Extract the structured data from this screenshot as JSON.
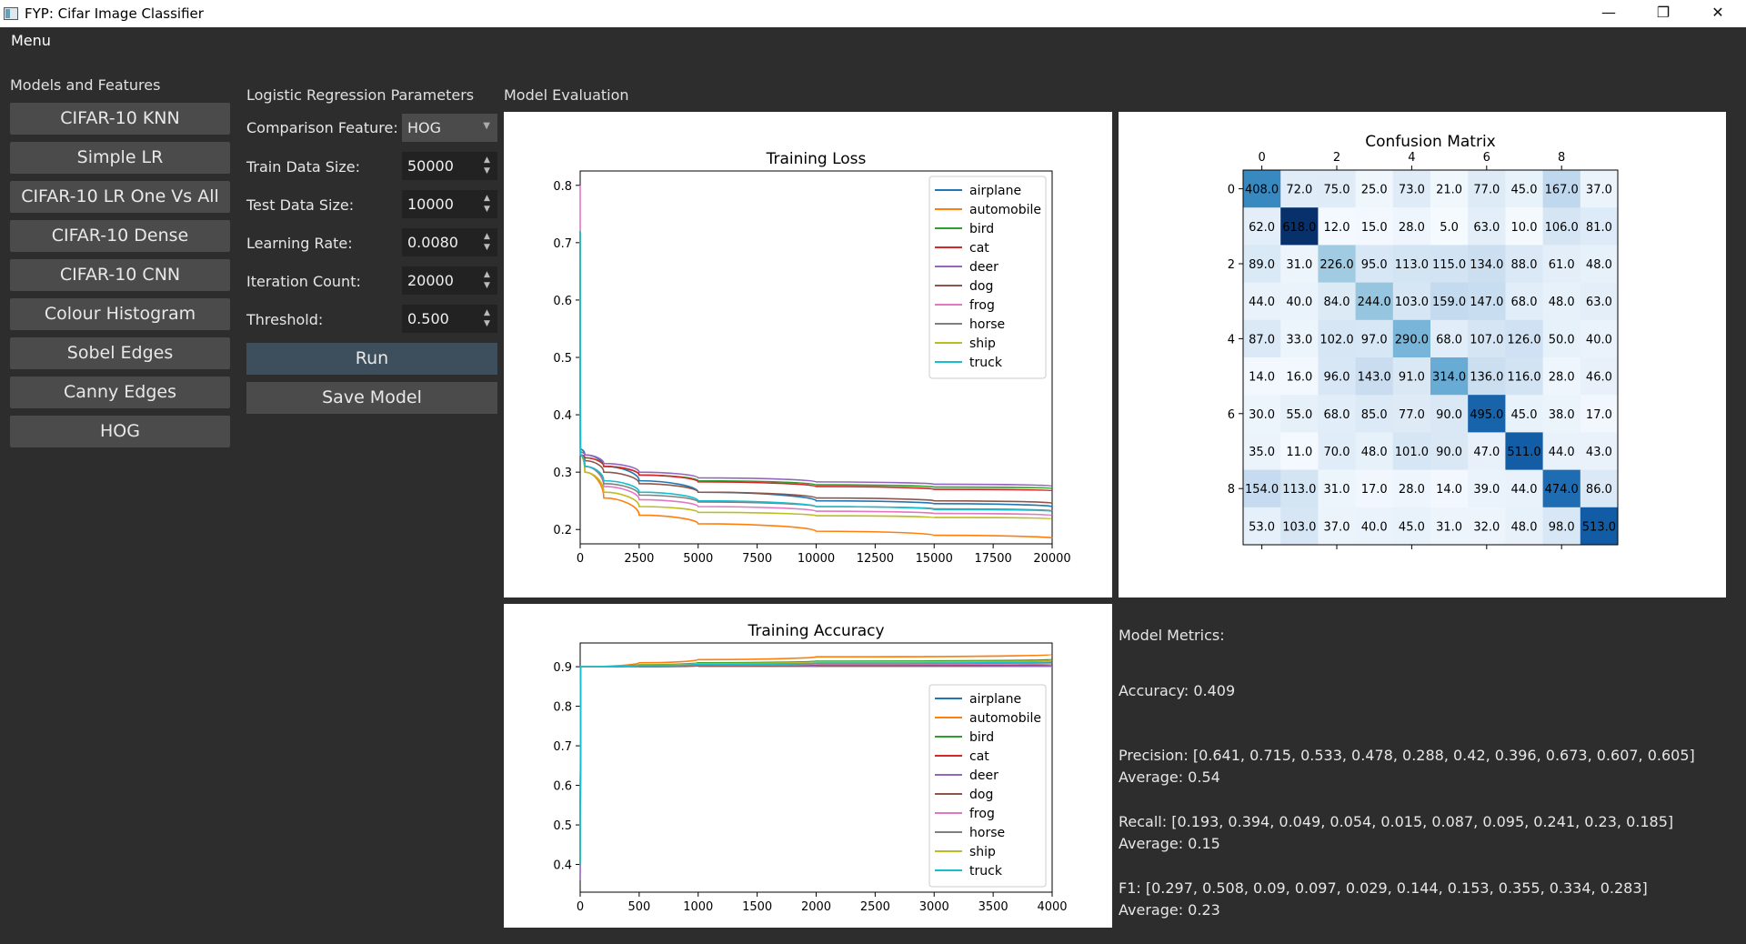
{
  "window": {
    "title": "FYP: Cifar Image Classifier",
    "minimize": "—",
    "restore": "❐",
    "close": "✕"
  },
  "menubar": {
    "menu": "Menu"
  },
  "sidebar": {
    "heading": "Models and Features",
    "items": [
      {
        "label": "CIFAR-10 KNN"
      },
      {
        "label": "Simple LR"
      },
      {
        "label": "CIFAR-10 LR One Vs All"
      },
      {
        "label": "CIFAR-10 Dense"
      },
      {
        "label": "CIFAR-10 CNN"
      },
      {
        "label": "Colour Histogram"
      },
      {
        "label": "Sobel Edges"
      },
      {
        "label": "Canny Edges"
      },
      {
        "label": "HOG"
      }
    ]
  },
  "params": {
    "heading": "Logistic Regression Parameters",
    "comparison_feature": {
      "label": "Comparison Feature:",
      "value": "HOG"
    },
    "train_size": {
      "label": "Train Data Size:",
      "value": "50000"
    },
    "test_size": {
      "label": "Test Data Size:",
      "value": "10000"
    },
    "learning_rate": {
      "label": "Learning Rate:",
      "value": "0.0080"
    },
    "iterations": {
      "label": "Iteration Count:",
      "value": "20000"
    },
    "threshold": {
      "label": "Threshold:",
      "value": "0.500"
    },
    "run_label": "Run",
    "save_label": "Save Model",
    "run_color": "#3d4f5c",
    "save_color": "#4b4b4b"
  },
  "evaluation": {
    "heading": "Model Evaluation",
    "metrics": {
      "heading": "Model Metrics:",
      "accuracy": "Accuracy: 0.409",
      "precision": "Precision: [0.641, 0.715, 0.533, 0.478, 0.288, 0.42, 0.396, 0.673, 0.607, 0.605]",
      "precision_avg": "Average: 0.54",
      "recall": "Recall: [0.193, 0.394, 0.049, 0.054, 0.015, 0.087, 0.095, 0.241, 0.23, 0.185]",
      "recall_avg": "Average: 0.15",
      "f1": "F1: [0.297, 0.508, 0.09, 0.097, 0.029, 0.144, 0.153, 0.355, 0.334, 0.283]",
      "f1_avg": "Average: 0.23"
    }
  },
  "chart_data": [
    {
      "type": "line",
      "title": "Training Loss",
      "xlim": [
        0,
        20000
      ],
      "ylim": [
        0.175,
        0.825
      ],
      "xticks": [
        0,
        2500,
        5000,
        7500,
        10000,
        12500,
        15000,
        17500,
        20000
      ],
      "yticks": [
        0.2,
        0.3,
        0.4,
        0.5,
        0.6,
        0.7,
        0.8
      ],
      "legend": "top-right",
      "series": [
        {
          "name": "airplane",
          "color": "#1f77b4",
          "x": [
            0,
            10,
            200,
            1000,
            2500,
            5000,
            10000,
            15000,
            20000
          ],
          "y": [
            0.72,
            0.34,
            0.33,
            0.31,
            0.285,
            0.265,
            0.25,
            0.245,
            0.24
          ]
        },
        {
          "name": "automobile",
          "color": "#ff7f0e",
          "x": [
            0,
            10,
            200,
            1000,
            2500,
            5000,
            10000,
            15000,
            20000
          ],
          "y": [
            0.72,
            0.33,
            0.3,
            0.255,
            0.225,
            0.21,
            0.197,
            0.19,
            0.185
          ]
        },
        {
          "name": "bird",
          "color": "#2ca02c",
          "x": [
            0,
            10,
            200,
            1000,
            2500,
            5000,
            10000,
            15000,
            20000
          ],
          "y": [
            0.72,
            0.33,
            0.325,
            0.31,
            0.295,
            0.285,
            0.278,
            0.274,
            0.272
          ]
        },
        {
          "name": "cat",
          "color": "#d62728",
          "x": [
            0,
            10,
            200,
            1000,
            2500,
            5000,
            10000,
            15000,
            20000
          ],
          "y": [
            0.72,
            0.33,
            0.325,
            0.31,
            0.295,
            0.283,
            0.275,
            0.27,
            0.268
          ]
        },
        {
          "name": "deer",
          "color": "#9467bd",
          "x": [
            0,
            10,
            200,
            1000,
            2500,
            5000,
            10000,
            15000,
            20000
          ],
          "y": [
            0.72,
            0.335,
            0.33,
            0.315,
            0.3,
            0.29,
            0.283,
            0.279,
            0.276
          ]
        },
        {
          "name": "dog",
          "color": "#8c564b",
          "x": [
            0,
            10,
            200,
            1000,
            2500,
            5000,
            10000,
            15000,
            20000
          ],
          "y": [
            0.72,
            0.33,
            0.32,
            0.3,
            0.28,
            0.265,
            0.255,
            0.25,
            0.246
          ]
        },
        {
          "name": "frog",
          "color": "#e377c2",
          "x": [
            0,
            10,
            200,
            1000,
            2500,
            5000,
            10000,
            15000,
            20000
          ],
          "y": [
            0.8,
            0.33,
            0.31,
            0.275,
            0.252,
            0.24,
            0.232,
            0.228,
            0.225
          ]
        },
        {
          "name": "horse",
          "color": "#7f7f7f",
          "x": [
            0,
            10,
            200,
            1000,
            2500,
            5000,
            10000,
            15000,
            20000
          ],
          "y": [
            0.72,
            0.33,
            0.31,
            0.28,
            0.26,
            0.248,
            0.24,
            0.236,
            0.233
          ]
        },
        {
          "name": "ship",
          "color": "#bcbd22",
          "x": [
            0,
            10,
            200,
            1000,
            2500,
            5000,
            10000,
            15000,
            20000
          ],
          "y": [
            0.72,
            0.33,
            0.3,
            0.265,
            0.24,
            0.23,
            0.224,
            0.221,
            0.219
          ]
        },
        {
          "name": "truck",
          "color": "#17becf",
          "x": [
            0,
            10,
            200,
            1000,
            2500,
            5000,
            10000,
            15000,
            20000
          ],
          "y": [
            0.72,
            0.33,
            0.31,
            0.285,
            0.265,
            0.25,
            0.24,
            0.235,
            0.232
          ]
        }
      ]
    },
    {
      "type": "line",
      "title": "Training Accuracy",
      "xlim": [
        0,
        4000
      ],
      "ylim": [
        0.33,
        0.96
      ],
      "xticks": [
        0,
        500,
        1000,
        1500,
        2000,
        2500,
        3000,
        3500,
        4000
      ],
      "yticks": [
        0.4,
        0.5,
        0.6,
        0.7,
        0.8,
        0.9
      ],
      "legend": "lower-right",
      "series": [
        {
          "name": "airplane",
          "color": "#1f77b4",
          "x": [
            0,
            5,
            500,
            1000,
            2000,
            4000
          ],
          "y": [
            0.4,
            0.9,
            0.902,
            0.905,
            0.908,
            0.91
          ]
        },
        {
          "name": "automobile",
          "color": "#ff7f0e",
          "x": [
            0,
            5,
            500,
            1000,
            2000,
            4000
          ],
          "y": [
            0.4,
            0.9,
            0.91,
            0.918,
            0.925,
            0.93
          ]
        },
        {
          "name": "bird",
          "color": "#2ca02c",
          "x": [
            0,
            5,
            500,
            1000,
            2000,
            4000
          ],
          "y": [
            0.4,
            0.9,
            0.905,
            0.91,
            0.914,
            0.918
          ]
        },
        {
          "name": "cat",
          "color": "#d62728",
          "x": [
            0,
            5,
            500,
            1000,
            2000,
            4000
          ],
          "y": [
            0.5,
            0.9,
            0.901,
            0.902,
            0.903,
            0.904
          ]
        },
        {
          "name": "deer",
          "color": "#9467bd",
          "x": [
            0,
            5,
            500,
            1000,
            2000,
            4000
          ],
          "y": [
            0.36,
            0.9,
            0.9,
            0.901,
            0.901,
            0.901
          ]
        },
        {
          "name": "dog",
          "color": "#8c564b",
          "x": [
            0,
            5,
            500,
            1000,
            2000,
            4000
          ],
          "y": [
            0.4,
            0.9,
            0.901,
            0.902,
            0.903,
            0.904
          ]
        },
        {
          "name": "frog",
          "color": "#e377c2",
          "x": [
            0,
            5,
            500,
            1000,
            2000,
            4000
          ],
          "y": [
            0.4,
            0.9,
            0.902,
            0.904,
            0.906,
            0.908
          ]
        },
        {
          "name": "horse",
          "color": "#7f7f7f",
          "x": [
            0,
            5,
            500,
            1000,
            2000,
            4000
          ],
          "y": [
            0.4,
            0.9,
            0.902,
            0.905,
            0.908,
            0.911
          ]
        },
        {
          "name": "ship",
          "color": "#bcbd22",
          "x": [
            0,
            5,
            500,
            1000,
            2000,
            4000
          ],
          "y": [
            0.4,
            0.9,
            0.904,
            0.908,
            0.912,
            0.915
          ]
        },
        {
          "name": "truck",
          "color": "#17becf",
          "x": [
            0,
            5,
            500,
            1000,
            2000,
            4000
          ],
          "y": [
            0.4,
            0.9,
            0.903,
            0.906,
            0.909,
            0.912
          ]
        }
      ]
    },
    {
      "type": "heatmap",
      "title": "Confusion Matrix",
      "colormap": "Blues",
      "xticks": [
        0,
        2,
        4,
        6,
        8
      ],
      "yticks": [
        0,
        2,
        4,
        6,
        8
      ],
      "values": [
        [
          408.0,
          72.0,
          75.0,
          25.0,
          73.0,
          21.0,
          77.0,
          45.0,
          167.0,
          37.0
        ],
        [
          62.0,
          618.0,
          12.0,
          15.0,
          28.0,
          5.0,
          63.0,
          10.0,
          106.0,
          81.0
        ],
        [
          89.0,
          31.0,
          226.0,
          95.0,
          113.0,
          115.0,
          134.0,
          88.0,
          61.0,
          48.0
        ],
        [
          44.0,
          40.0,
          84.0,
          244.0,
          103.0,
          159.0,
          147.0,
          68.0,
          48.0,
          63.0
        ],
        [
          87.0,
          33.0,
          102.0,
          97.0,
          290.0,
          68.0,
          107.0,
          126.0,
          50.0,
          40.0
        ],
        [
          14.0,
          16.0,
          96.0,
          143.0,
          91.0,
          314.0,
          136.0,
          116.0,
          28.0,
          46.0
        ],
        [
          30.0,
          55.0,
          68.0,
          85.0,
          77.0,
          90.0,
          495.0,
          45.0,
          38.0,
          17.0
        ],
        [
          35.0,
          11.0,
          70.0,
          48.0,
          101.0,
          90.0,
          47.0,
          511.0,
          44.0,
          43.0
        ],
        [
          154.0,
          113.0,
          31.0,
          17.0,
          28.0,
          14.0,
          39.0,
          44.0,
          474.0,
          86.0
        ],
        [
          53.0,
          103.0,
          37.0,
          40.0,
          45.0,
          31.0,
          32.0,
          48.0,
          98.0,
          513.0
        ]
      ]
    }
  ]
}
